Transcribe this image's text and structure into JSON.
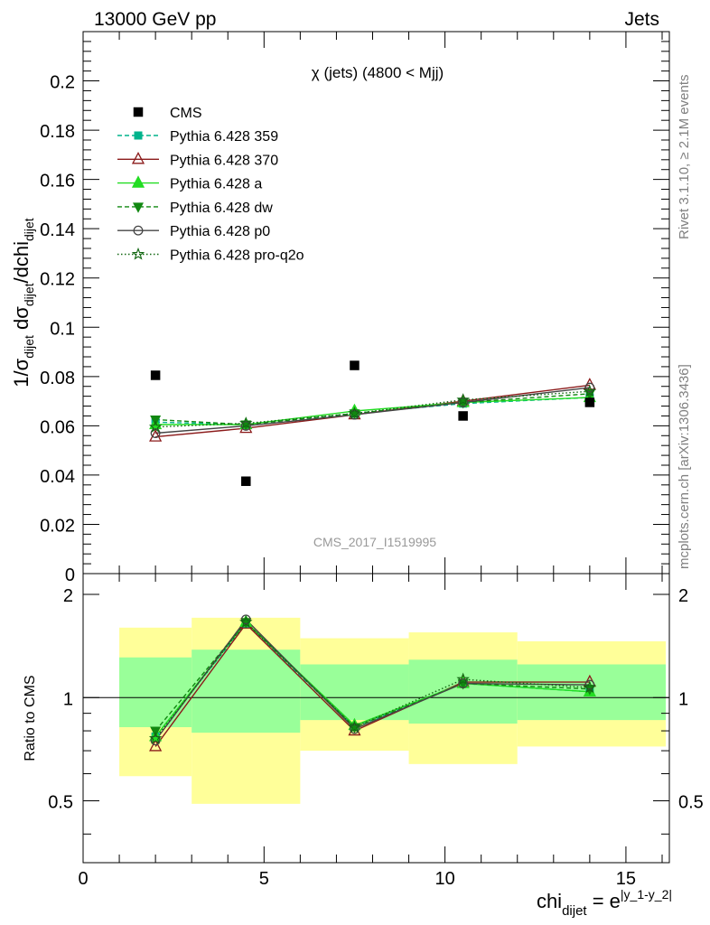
{
  "header": {
    "left": "13000 GeV pp",
    "right": "Jets"
  },
  "side_labels": {
    "rivet": "Rivet 3.1.10, ≥ 2.1M events",
    "mcplots": "mcplots.cern.ch [arXiv:1306.3436]"
  },
  "chart_data": [
    {
      "type": "scatter",
      "title": "χ (jets) (4800 < Mjj)",
      "watermark": "CMS_2017_I1519995",
      "ylabel": "1/σ_dijet dσ_dijet/dchi_dijet",
      "xlim": [
        0,
        16.2
      ],
      "ylim": [
        0,
        0.22
      ],
      "yticks": [
        0,
        0.02,
        0.04,
        0.06,
        0.08,
        0.1,
        0.12,
        0.14,
        0.16,
        0.18,
        0.2
      ],
      "ytick_labels": [
        "0",
        "0.02",
        "0.04",
        "0.06",
        "0.08",
        "0.1",
        "0.12",
        "0.14",
        "0.16",
        "0.18",
        "0.2"
      ],
      "legend_position": "top-left",
      "data": {
        "name": "CMS",
        "color": "#000000",
        "x": [
          2,
          4.5,
          7.5,
          10.5,
          14
        ],
        "y": [
          0.0805,
          0.0375,
          0.0845,
          0.064,
          0.0695
        ]
      },
      "series": [
        {
          "name": "Pythia 6.428 359",
          "color": "#00b38c",
          "dash": "5,3",
          "marker": "square",
          "x": [
            2,
            4.5,
            7.5,
            10.5,
            14
          ],
          "y": [
            0.0615,
            0.0605,
            0.065,
            0.069,
            0.0715
          ]
        },
        {
          "name": "Pythia 6.428 370",
          "color": "#8b1a1a",
          "dash": "",
          "marker": "triangle-open",
          "x": [
            2,
            4.5,
            7.5,
            10.5,
            14
          ],
          "y": [
            0.0555,
            0.059,
            0.0645,
            0.07,
            0.0765
          ]
        },
        {
          "name": "Pythia 6.428 a",
          "color": "#22dd22",
          "dash": "",
          "marker": "triangle",
          "x": [
            2,
            4.5,
            7.5,
            10.5,
            14
          ],
          "y": [
            0.0605,
            0.0605,
            0.066,
            0.0695,
            0.0715
          ]
        },
        {
          "name": "Pythia 6.428 dw",
          "color": "#118811",
          "dash": "5,3",
          "marker": "triangle-down",
          "x": [
            2,
            4.5,
            7.5,
            10.5,
            14
          ],
          "y": [
            0.0625,
            0.0605,
            0.065,
            0.0695,
            0.073
          ]
        },
        {
          "name": "Pythia 6.428 p0",
          "color": "#444444",
          "dash": "",
          "marker": "circle-open",
          "x": [
            2,
            4.5,
            7.5,
            10.5,
            14
          ],
          "y": [
            0.057,
            0.06,
            0.0645,
            0.0695,
            0.0755
          ]
        },
        {
          "name": "Pythia 6.428 pro-q2o",
          "color": "#116611",
          "dash": "1.5,2.5",
          "marker": "star",
          "x": [
            2,
            4.5,
            7.5,
            10.5,
            14
          ],
          "y": [
            0.0595,
            0.061,
            0.065,
            0.0705,
            0.074
          ]
        }
      ]
    },
    {
      "type": "line",
      "ylabel": "Ratio to CMS",
      "xlabel": "chi_dijet = e^|y_1-y_2|",
      "xlim": [
        0,
        16.2
      ],
      "ylim": [
        0.33,
        2.3
      ],
      "xticks": [
        0,
        5,
        10,
        15
      ],
      "xtick_labels": [
        "0",
        "5",
        "10",
        "15"
      ],
      "yticks": [
        0.5,
        1,
        2
      ],
      "ytick_labels": [
        "0.5",
        "1",
        "2"
      ],
      "bands": [
        {
          "x_lo": 1,
          "x_hi": 3,
          "inner": [
            0.82,
            1.31
          ],
          "outer": [
            0.59,
            1.6
          ]
        },
        {
          "x_lo": 3,
          "x_hi": 6,
          "inner": [
            0.79,
            1.38
          ],
          "outer": [
            0.49,
            1.71
          ]
        },
        {
          "x_lo": 6,
          "x_hi": 9,
          "inner": [
            0.86,
            1.25
          ],
          "outer": [
            0.7,
            1.49
          ]
        },
        {
          "x_lo": 9,
          "x_hi": 12,
          "inner": [
            0.84,
            1.29
          ],
          "outer": [
            0.64,
            1.55
          ]
        },
        {
          "x_lo": 12,
          "x_hi": 16.1,
          "inner": [
            0.86,
            1.25
          ],
          "outer": [
            0.72,
            1.46
          ]
        }
      ],
      "series": [
        {
          "name": "Pythia 6.428 359",
          "x": [
            2,
            4.5,
            7.5,
            10.5,
            14
          ],
          "y": [
            0.77,
            1.64,
            0.82,
            1.1,
            1.04
          ]
        },
        {
          "name": "Pythia 6.428 370",
          "x": [
            2,
            4.5,
            7.5,
            10.5,
            14
          ],
          "y": [
            0.72,
            1.64,
            0.8,
            1.11,
            1.11
          ]
        },
        {
          "name": "Pythia 6.428 a",
          "x": [
            2,
            4.5,
            7.5,
            10.5,
            14
          ],
          "y": [
            0.77,
            1.66,
            0.83,
            1.1,
            1.04
          ]
        },
        {
          "name": "Pythia 6.428 dw",
          "x": [
            2,
            4.5,
            7.5,
            10.5,
            14
          ],
          "y": [
            0.8,
            1.66,
            0.82,
            1.1,
            1.06
          ]
        },
        {
          "name": "Pythia 6.428 p0",
          "x": [
            2,
            4.5,
            7.5,
            10.5,
            14
          ],
          "y": [
            0.75,
            1.69,
            0.81,
            1.1,
            1.09
          ]
        },
        {
          "name": "Pythia 6.428 pro-q2o",
          "x": [
            2,
            4.5,
            7.5,
            10.5,
            14
          ],
          "y": [
            0.76,
            1.66,
            0.82,
            1.13,
            1.07
          ]
        }
      ]
    }
  ]
}
